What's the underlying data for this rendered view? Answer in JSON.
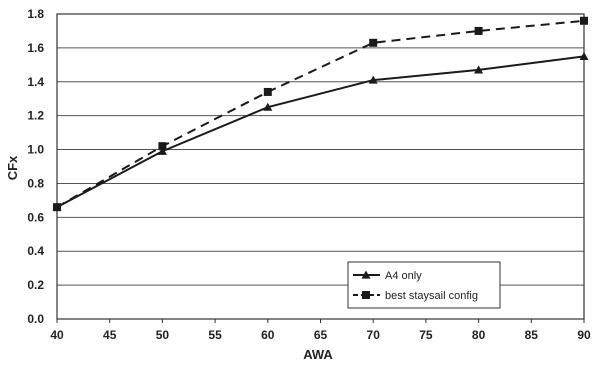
{
  "chart_data": {
    "type": "line",
    "xlabel": "AWA",
    "ylabel": "CFx",
    "xlim": [
      40,
      90
    ],
    "ylim": [
      0.0,
      1.8
    ],
    "xticks": [
      "40",
      "45",
      "50",
      "55",
      "60",
      "65",
      "70",
      "75",
      "80",
      "85",
      "90"
    ],
    "yticks": [
      "0.0",
      "0.2",
      "0.4",
      "0.6",
      "0.8",
      "1.0",
      "1.2",
      "1.4",
      "1.6",
      "1.8"
    ],
    "grid": "horizontal",
    "legend_position": "bottom-right",
    "series": [
      {
        "name": "A4 only",
        "style": "solid",
        "marker": "triangle",
        "color": "#1a1a1a",
        "x": [
          40,
          50,
          60,
          70,
          80,
          90
        ],
        "y": [
          0.66,
          0.99,
          1.25,
          1.41,
          1.47,
          1.55
        ]
      },
      {
        "name": "best staysail config",
        "style": "dashed",
        "marker": "square",
        "color": "#1a1a1a",
        "x": [
          40,
          50,
          60,
          70,
          80,
          90
        ],
        "y": [
          0.66,
          1.02,
          1.34,
          1.63,
          1.7,
          1.76
        ]
      }
    ]
  }
}
